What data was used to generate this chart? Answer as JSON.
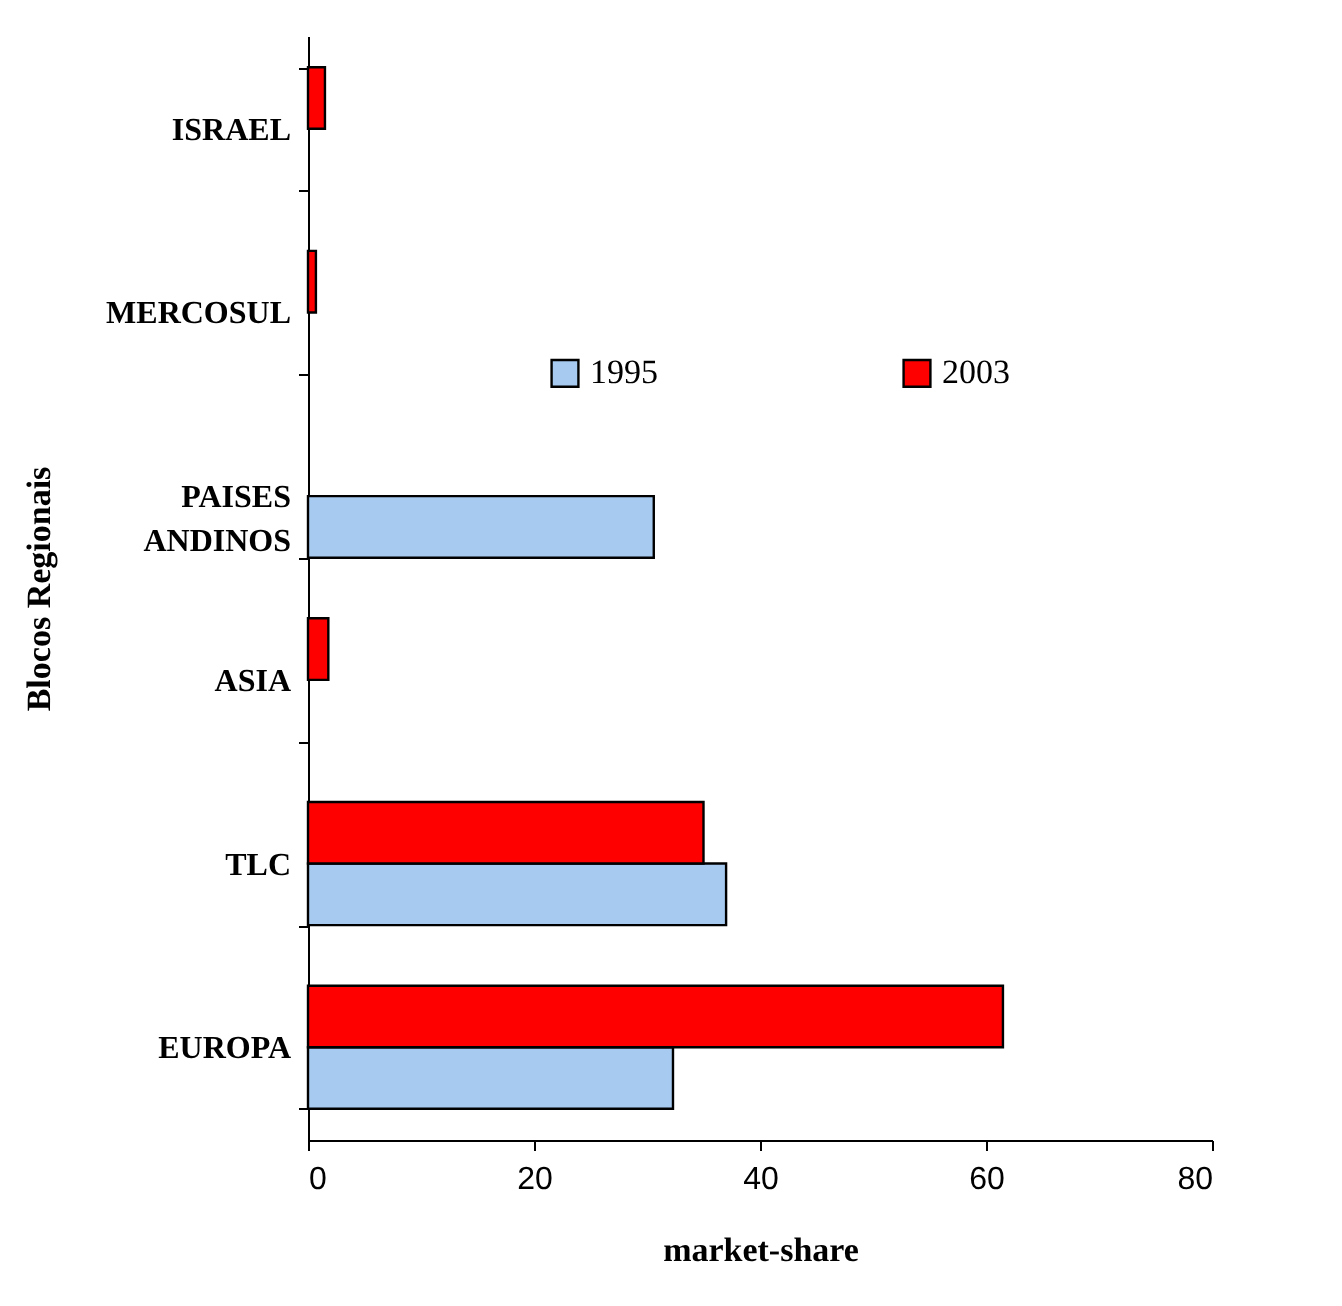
{
  "chart_data": {
    "type": "bar",
    "orientation": "horizontal",
    "xlabel": "market-share",
    "ylabel": "Blocos Regionais",
    "categories": [
      "ISRAEL",
      "MERCOSUL",
      "PAISES ANDINOS",
      "ASIA",
      "TLC",
      "EUROPA"
    ],
    "series": [
      {
        "name": "1995",
        "color": "#a6caf0",
        "values": [
          null,
          null,
          30.6,
          null,
          37.0,
          32.3
        ]
      },
      {
        "name": "2003",
        "color": "#ff0000",
        "values": [
          1.5,
          0.7,
          null,
          1.8,
          35.0,
          61.5
        ]
      }
    ],
    "xlim": [
      0,
      80
    ],
    "xticks": [
      0,
      20,
      40,
      60,
      80
    ],
    "grid": false,
    "legend": "top right"
  }
}
